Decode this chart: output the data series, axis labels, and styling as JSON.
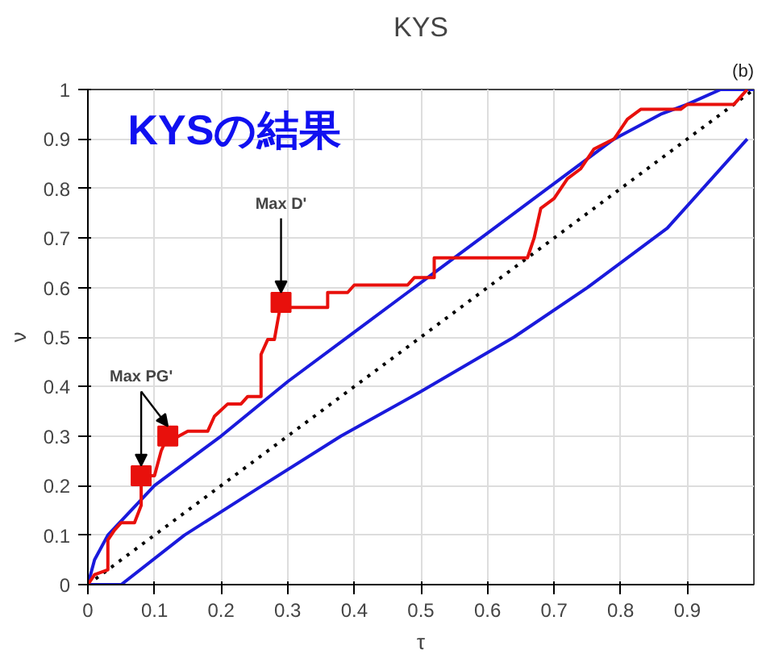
{
  "chart_data": {
    "type": "line",
    "title": "KYS",
    "xlabel": "τ",
    "ylabel": "ν",
    "annotations": [
      "KYSの結果",
      "(b)",
      {
        "text": "Max D'",
        "x": 0.29,
        "y": 0.57
      },
      {
        "text": "Max PG'",
        "x": 0.08,
        "y": 0.22
      }
    ],
    "xlim": [
      0,
      1
    ],
    "ylim": [
      0,
      1
    ],
    "xticks": [
      0,
      0.1,
      0.2,
      0.3,
      0.4,
      0.5,
      0.6,
      0.7,
      0.8,
      0.9
    ],
    "yticks": [
      0,
      0.1,
      0.2,
      0.3,
      0.4,
      0.5,
      0.6,
      0.7,
      0.8,
      0.9,
      1
    ],
    "grid": true,
    "series": [
      {
        "color": "#000000",
        "line_style": "dotted",
        "x": [
          0,
          1
        ],
        "values": [
          0,
          1
        ]
      },
      {
        "color": "#1a1adc",
        "line_style": "solid",
        "x": [
          0,
          0.01,
          0.03,
          0.1,
          0.2,
          0.3,
          0.4,
          0.49,
          0.6,
          0.7,
          0.79,
          0.86,
          0.9,
          0.95,
          1
        ],
        "values": [
          0,
          0.05,
          0.1,
          0.2,
          0.3,
          0.41,
          0.51,
          0.6,
          0.71,
          0.81,
          0.9,
          0.95,
          0.97,
          1,
          1
        ]
      },
      {
        "color": "#1a1adc",
        "line_style": "solid",
        "x": [
          0,
          0.05,
          0.145,
          0.25,
          0.38,
          0.5,
          0.64,
          0.75,
          0.87,
          0.99
        ],
        "values": [
          0,
          0,
          0.1,
          0.19,
          0.3,
          0.39,
          0.5,
          0.6,
          0.72,
          0.9
        ]
      },
      {
        "color": "#e8100c",
        "line_style": "solid",
        "x": [
          0,
          0.01,
          0.03,
          0.03,
          0.04,
          0.05,
          0.07,
          0.08,
          0.08,
          0.1,
          0.11,
          0.12,
          0.13,
          0.15,
          0.18,
          0.19,
          0.21,
          0.23,
          0.24,
          0.26,
          0.26,
          0.27,
          0.28,
          0.29,
          0.29,
          0.36,
          0.36,
          0.39,
          0.4,
          0.48,
          0.49,
          0.52,
          0.52,
          0.66,
          0.67,
          0.68,
          0.7,
          0.72,
          0.74,
          0.76,
          0.79,
          0.81,
          0.83,
          0.89,
          0.9,
          0.97,
          0.99
        ],
        "values": [
          0,
          0.02,
          0.03,
          0.09,
          0.11,
          0.125,
          0.125,
          0.16,
          0.22,
          0.22,
          0.27,
          0.3,
          0.295,
          0.31,
          0.31,
          0.34,
          0.365,
          0.365,
          0.38,
          0.38,
          0.465,
          0.495,
          0.495,
          0.57,
          0.56,
          0.56,
          0.59,
          0.59,
          0.605,
          0.605,
          0.62,
          0.62,
          0.66,
          0.66,
          0.7,
          0.76,
          0.78,
          0.82,
          0.84,
          0.88,
          0.9,
          0.94,
          0.96,
          0.96,
          0.97,
          0.97,
          1
        ]
      },
      {
        "type": "scatter",
        "marker": "square",
        "color": "#e8100c",
        "x": [
          0.08,
          0.12,
          0.29
        ],
        "values": [
          0.22,
          0.3,
          0.57
        ]
      }
    ]
  }
}
